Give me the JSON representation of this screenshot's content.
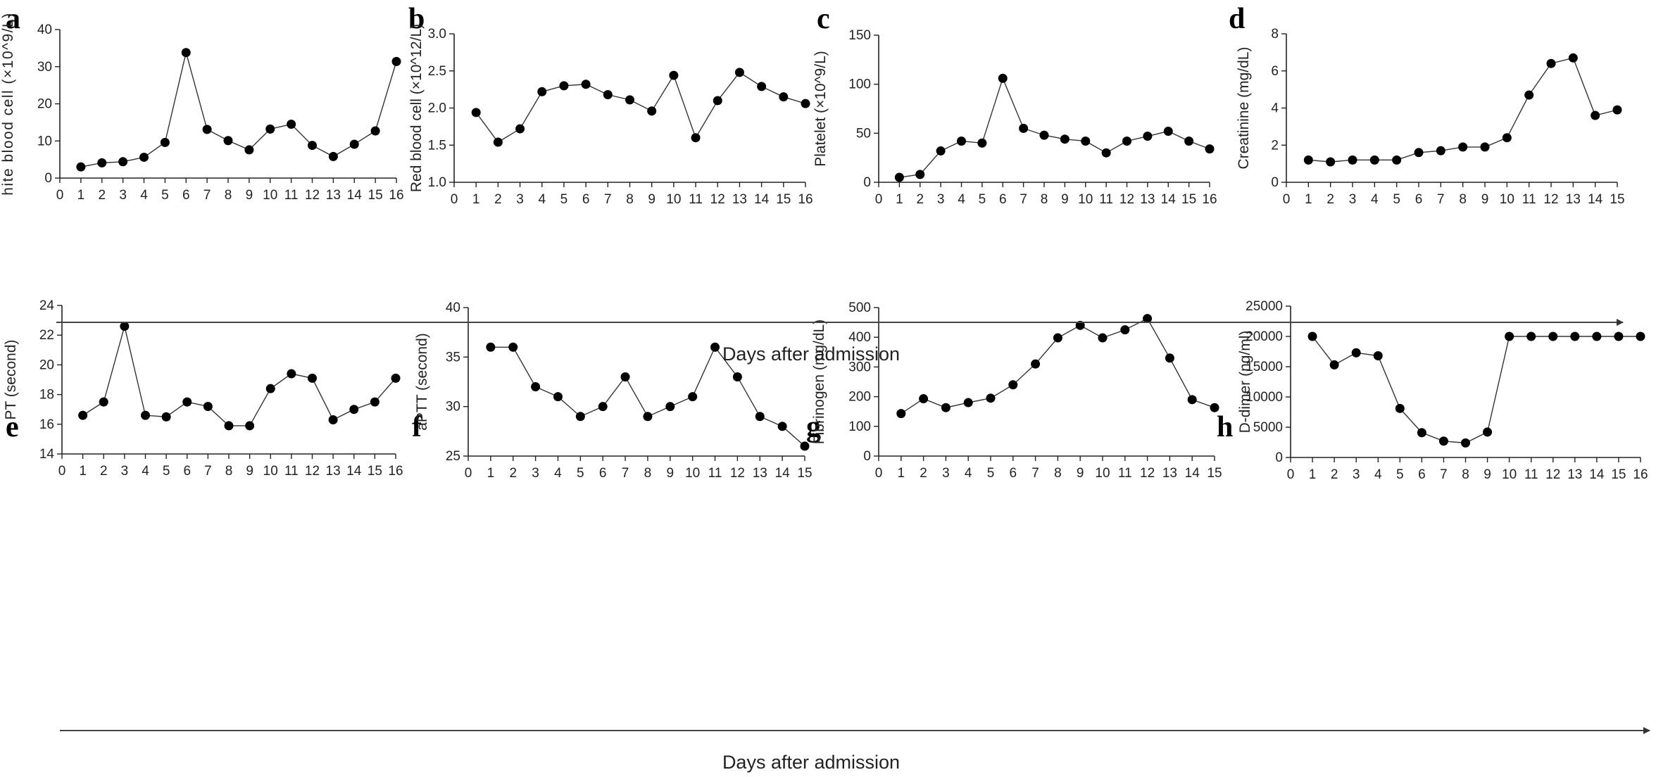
{
  "figure": {
    "x_caption_top": "Days after admission",
    "x_caption_bottom": "Days after admission"
  },
  "chart_data": [
    {
      "panel": "a",
      "type": "line",
      "ylabel": "hite blood cell (×10^9/L)",
      "ylim": [
        0,
        40
      ],
      "yticks": [
        0,
        10,
        20,
        30,
        40
      ],
      "xlim": [
        0,
        16
      ],
      "xticks": [
        0,
        1,
        2,
        3,
        4,
        5,
        6,
        7,
        8,
        9,
        10,
        11,
        12,
        13,
        14,
        15,
        16
      ],
      "x": [
        1,
        2,
        3,
        4,
        5,
        6,
        7,
        8,
        9,
        10,
        11,
        12,
        13,
        14,
        15,
        16
      ],
      "y": [
        3.0,
        4.1,
        4.4,
        5.6,
        9.6,
        33.8,
        13.1,
        10.1,
        7.6,
        13.2,
        14.5,
        8.8,
        5.8,
        9.1,
        12.7,
        31.4
      ]
    },
    {
      "panel": "b",
      "type": "line",
      "ylabel": "Red blood cell (×10^12/L)",
      "ylim": [
        1.0,
        3.0
      ],
      "yticks": [
        "1.0",
        "1.5",
        "2.0",
        "2.5",
        "3.0"
      ],
      "xlim": [
        0,
        16
      ],
      "xticks": [
        0,
        1,
        2,
        3,
        4,
        5,
        6,
        7,
        8,
        9,
        10,
        11,
        12,
        13,
        14,
        15,
        16
      ],
      "x": [
        1,
        2,
        3,
        4,
        5,
        6,
        7,
        8,
        9,
        10,
        11,
        12,
        13,
        14,
        15,
        16
      ],
      "y": [
        1.94,
        1.54,
        1.72,
        2.22,
        2.3,
        2.32,
        2.18,
        2.11,
        1.96,
        2.44,
        1.6,
        2.1,
        2.48,
        2.29,
        2.15,
        2.06
      ]
    },
    {
      "panel": "c",
      "type": "line",
      "ylabel": "Platelet (×10^9/L)",
      "ylim": [
        0,
        150
      ],
      "yticks": [
        0,
        50,
        100,
        150
      ],
      "xlim": [
        0,
        16
      ],
      "xticks": [
        0,
        1,
        2,
        3,
        4,
        5,
        6,
        7,
        8,
        9,
        10,
        11,
        12,
        13,
        14,
        15,
        16
      ],
      "x": [
        1,
        2,
        3,
        4,
        5,
        6,
        7,
        8,
        9,
        10,
        11,
        12,
        13,
        14,
        15,
        16
      ],
      "y": [
        5,
        8,
        32,
        42,
        40,
        106,
        55,
        48,
        44,
        42,
        30,
        42,
        47,
        52,
        42,
        34
      ]
    },
    {
      "panel": "d",
      "type": "line",
      "ylabel": "Creatinine (mg/dL)",
      "ylim": [
        0,
        8
      ],
      "yticks": [
        0,
        2,
        4,
        6,
        8
      ],
      "xlim": [
        0,
        15
      ],
      "xticks": [
        0,
        1,
        2,
        3,
        4,
        5,
        6,
        7,
        8,
        9,
        10,
        11,
        12,
        13,
        14,
        15
      ],
      "x": [
        1,
        2,
        3,
        4,
        5,
        6,
        7,
        8,
        9,
        10,
        11,
        12,
        13,
        14,
        15
      ],
      "y": [
        1.2,
        1.1,
        1.2,
        1.2,
        1.2,
        1.6,
        1.7,
        1.9,
        1.9,
        2.4,
        4.7,
        6.4,
        6.7,
        3.6,
        3.9
      ]
    },
    {
      "panel": "e",
      "type": "line",
      "ylabel": "PT (second)",
      "ylim": [
        14,
        24
      ],
      "yticks": [
        14,
        16,
        18,
        20,
        22,
        24
      ],
      "xlim": [
        0,
        16
      ],
      "xticks": [
        0,
        1,
        2,
        3,
        4,
        5,
        6,
        7,
        8,
        9,
        10,
        11,
        12,
        13,
        14,
        15,
        16
      ],
      "x": [
        1,
        2,
        3,
        4,
        5,
        6,
        7,
        8,
        9,
        10,
        11,
        12,
        13,
        14,
        15,
        16
      ],
      "y": [
        16.6,
        17.5,
        22.6,
        16.6,
        16.5,
        17.5,
        17.2,
        15.9,
        15.9,
        18.4,
        19.4,
        19.1,
        16.3,
        17.0,
        17.5,
        19.1
      ]
    },
    {
      "panel": "f",
      "type": "line",
      "ylabel": "aPTT (second)",
      "ylim": [
        25,
        40
      ],
      "yticks": [
        25,
        30,
        35,
        40
      ],
      "xlim": [
        0,
        15
      ],
      "xticks": [
        0,
        1,
        2,
        3,
        4,
        5,
        6,
        7,
        8,
        9,
        10,
        11,
        12,
        13,
        14,
        15
      ],
      "x": [
        1,
        2,
        3,
        4,
        5,
        6,
        7,
        8,
        9,
        10,
        11,
        12,
        13,
        14,
        15
      ],
      "y": [
        36,
        36,
        32,
        31,
        29,
        30,
        33,
        29,
        30,
        31,
        36,
        33,
        29,
        28,
        26
      ]
    },
    {
      "panel": "g",
      "type": "line",
      "ylabel": "Fibrinogen (mg/dL)",
      "ylim": [
        0,
        500
      ],
      "yticks": [
        0,
        100,
        200,
        300,
        400,
        500
      ],
      "xlim": [
        0,
        15
      ],
      "xticks": [
        0,
        1,
        2,
        3,
        4,
        5,
        6,
        7,
        8,
        9,
        10,
        11,
        12,
        13,
        14,
        15
      ],
      "x": [
        1,
        2,
        3,
        4,
        5,
        6,
        7,
        8,
        9,
        10,
        11,
        12,
        13,
        14,
        15
      ],
      "y": [
        143,
        193,
        163,
        180,
        195,
        240,
        310,
        398,
        440,
        398,
        425,
        463,
        330,
        190,
        163
      ]
    },
    {
      "panel": "h",
      "type": "line",
      "ylabel": "D-dimer (ng/ml)",
      "ylim": [
        0,
        25000
      ],
      "yticks": [
        0,
        5000,
        10000,
        15000,
        20000,
        25000
      ],
      "xlim": [
        0,
        16
      ],
      "xticks": [
        0,
        1,
        2,
        3,
        4,
        5,
        6,
        7,
        8,
        9,
        10,
        11,
        12,
        13,
        14,
        15,
        16
      ],
      "x": [
        1,
        2,
        3,
        4,
        5,
        6,
        7,
        8,
        9,
        10,
        11,
        12,
        13,
        14,
        15,
        16
      ],
      "y": [
        20000,
        15300,
        17300,
        16800,
        8100,
        4100,
        2700,
        2400,
        4200,
        20000,
        20000,
        20000,
        20000,
        20000,
        20000,
        20000
      ]
    }
  ]
}
